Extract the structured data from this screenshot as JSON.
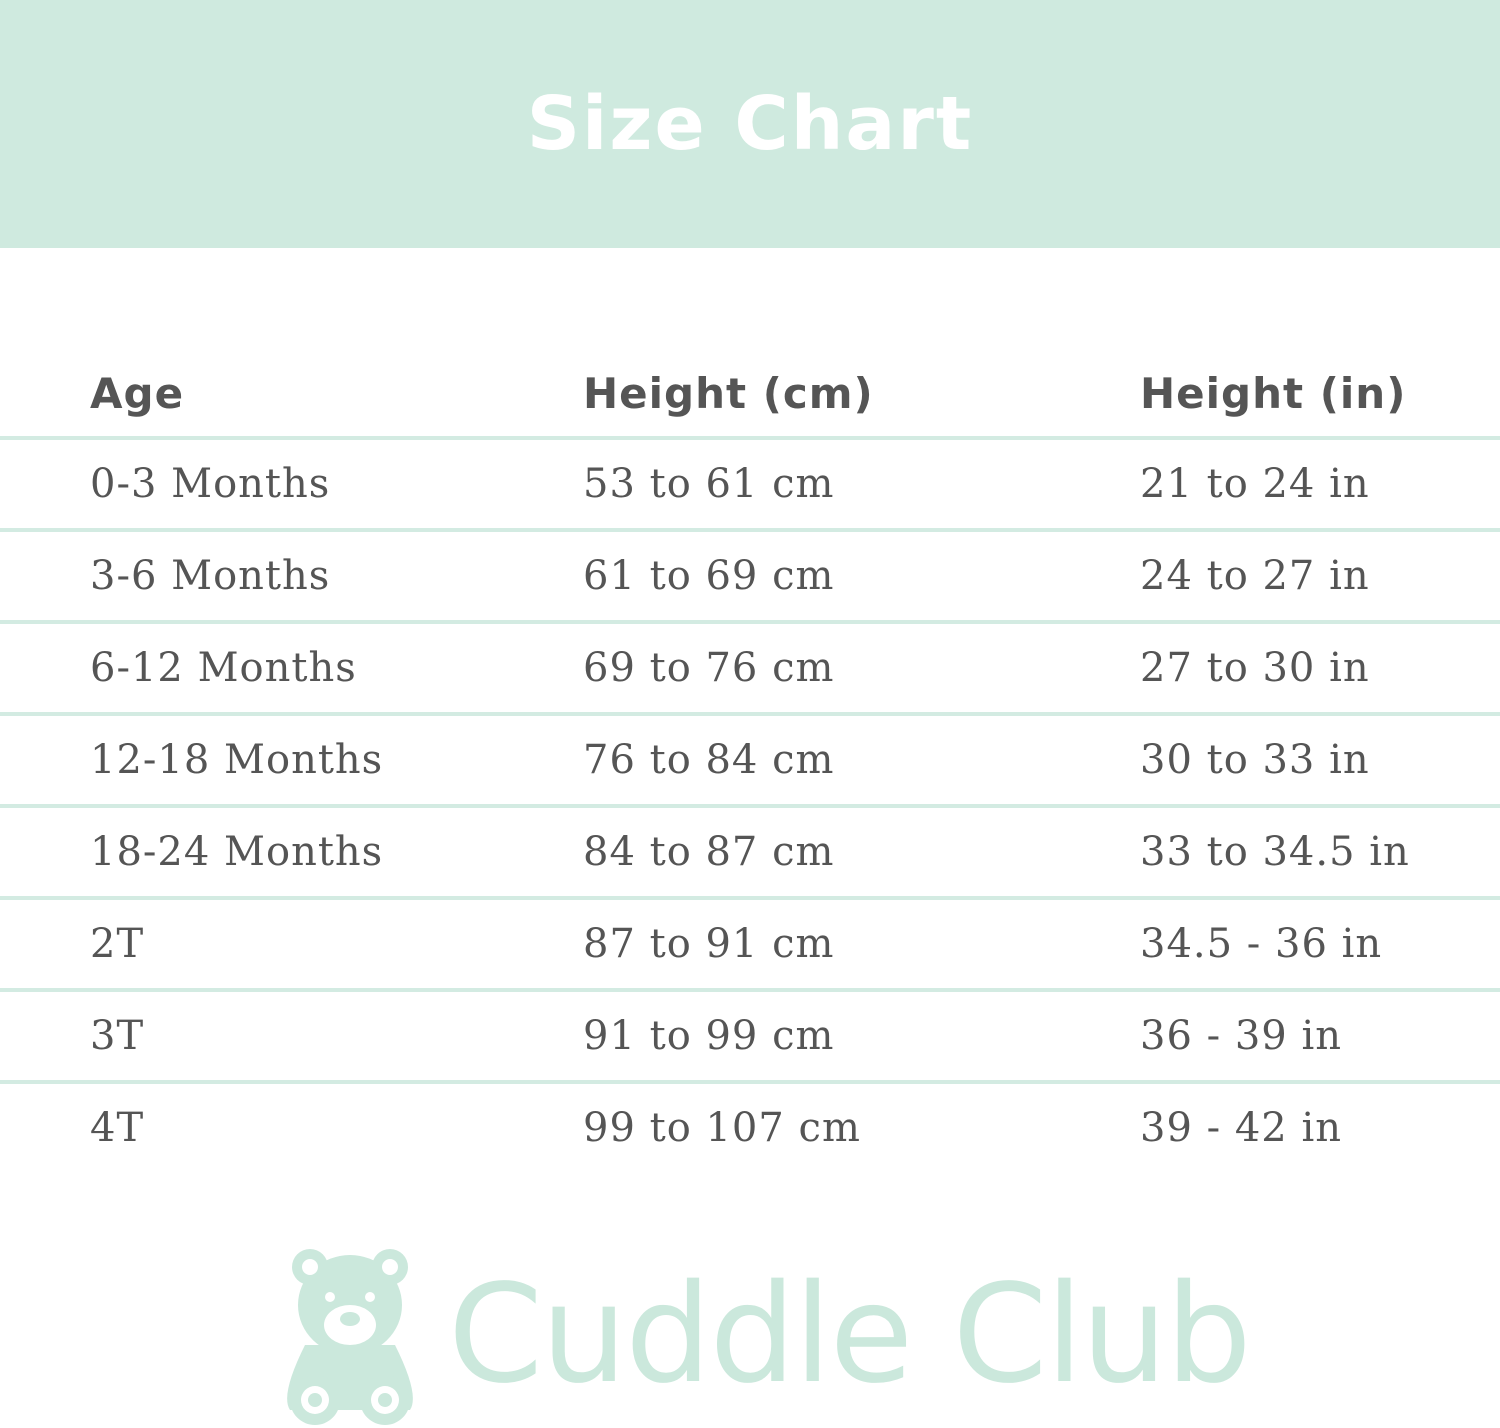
{
  "title": "Size Chart",
  "colors": {
    "accent": "#cfeadf",
    "text": "#555555",
    "logo": "#cbe8dc"
  },
  "table": {
    "headers": [
      "Age",
      "Height (cm)",
      "Height (in)"
    ],
    "rows": [
      [
        "0-3 Months",
        "53 to 61 cm",
        "21 to 24 in"
      ],
      [
        "3-6 Months",
        "61 to 69 cm",
        "24 to 27 in"
      ],
      [
        "6-12 Months",
        "69 to 76 cm",
        "27 to 30 in"
      ],
      [
        "12-18 Months",
        "76 to 84 cm",
        "30 to 33 in"
      ],
      [
        "18-24 Months",
        "84 to 87 cm",
        "33 to 34.5 in"
      ],
      [
        "2T",
        "87 to 91 cm",
        "34.5 - 36 in"
      ],
      [
        "3T",
        "91 to 99 cm",
        "36 - 39 in"
      ],
      [
        "4T",
        "99 to 107 cm",
        "39 - 42 in"
      ]
    ]
  },
  "logo": {
    "text": "Cuddle Club",
    "icon": "teddy-bear-icon"
  }
}
